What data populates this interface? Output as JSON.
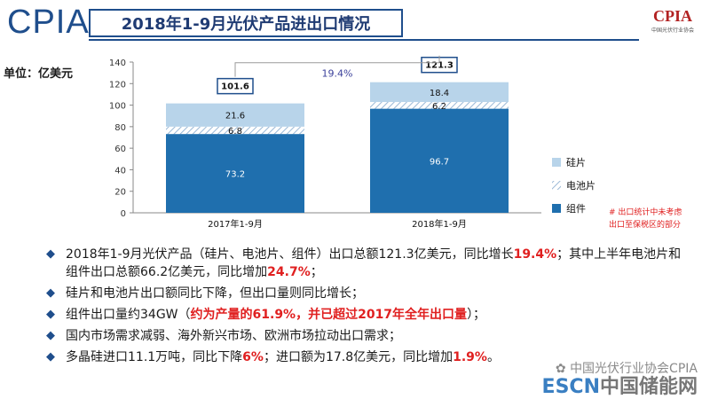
{
  "header": {
    "logo": "CPIA",
    "title": "2018年1-9月光伏产品进出口情况",
    "right_logo": "CPIA",
    "right_logo_sub": "中国光伏行业协会"
  },
  "unit_label": "单位：亿美元",
  "colors": {
    "silicon": "#4a90c9",
    "cell": "#b8d4ea",
    "module": "#1f6fae",
    "note": "#e02020"
  },
  "chart_data": {
    "type": "bar",
    "stacked": true,
    "categories": [
      "2017年1-9月",
      "2018年1-9月"
    ],
    "series": [
      {
        "name": "组件",
        "values": [
          73.2,
          96.7
        ]
      },
      {
        "name": "电池片",
        "values": [
          6.8,
          6.2
        ]
      },
      {
        "name": "硅片",
        "values": [
          21.6,
          18.4
        ]
      }
    ],
    "totals": [
      "101.6",
      "121.3"
    ],
    "growth_label": "19.4%",
    "ylim": [
      0,
      140
    ],
    "yticks": [
      "0",
      "20",
      "40",
      "60",
      "80",
      "100",
      "120",
      "140"
    ],
    "legend_position": "right",
    "note": [
      "# 出口统计中未考虑",
      "出口至保税区的部分"
    ]
  },
  "bullets": [
    {
      "segments": [
        {
          "text": "2018年1-9月光伏产品（硅片、电池片、组件）出口总额121.3亿美元，同比增长",
          "red": false
        },
        {
          "text": "19.4%",
          "red": true
        },
        {
          "text": "；其中上半年电池片和组件出口总额66.2亿美元，同比增加",
          "red": false
        },
        {
          "text": "24.7%",
          "red": true
        },
        {
          "text": "；",
          "red": false
        }
      ]
    },
    {
      "segments": [
        {
          "text": "硅片和电池片出口额同比下降，但出口量则同比增长；",
          "red": false
        }
      ]
    },
    {
      "segments": [
        {
          "text": "组件出口量约34GW（",
          "red": false
        },
        {
          "text": "约为产量的61.9%，并已超过2017年全年出口量",
          "red": true
        },
        {
          "text": "）；",
          "red": false
        }
      ]
    },
    {
      "segments": [
        {
          "text": "国内市场需求减弱、海外新兴市场、欧洲市场拉动出口需求；",
          "red": false
        }
      ]
    },
    {
      "segments": [
        {
          "text": "多晶硅进口11.1万吨，同比下降",
          "red": false
        },
        {
          "text": "6%",
          "red": true
        },
        {
          "text": "；进口额为17.8亿美元，同比增加",
          "red": false
        },
        {
          "text": "1.9%",
          "red": true
        },
        {
          "text": "。",
          "red": false
        }
      ]
    }
  ],
  "watermark": "中国光伏行业协会CPIA",
  "site_logo": {
    "part1": "ESCN",
    "part2": "中国储能网"
  }
}
